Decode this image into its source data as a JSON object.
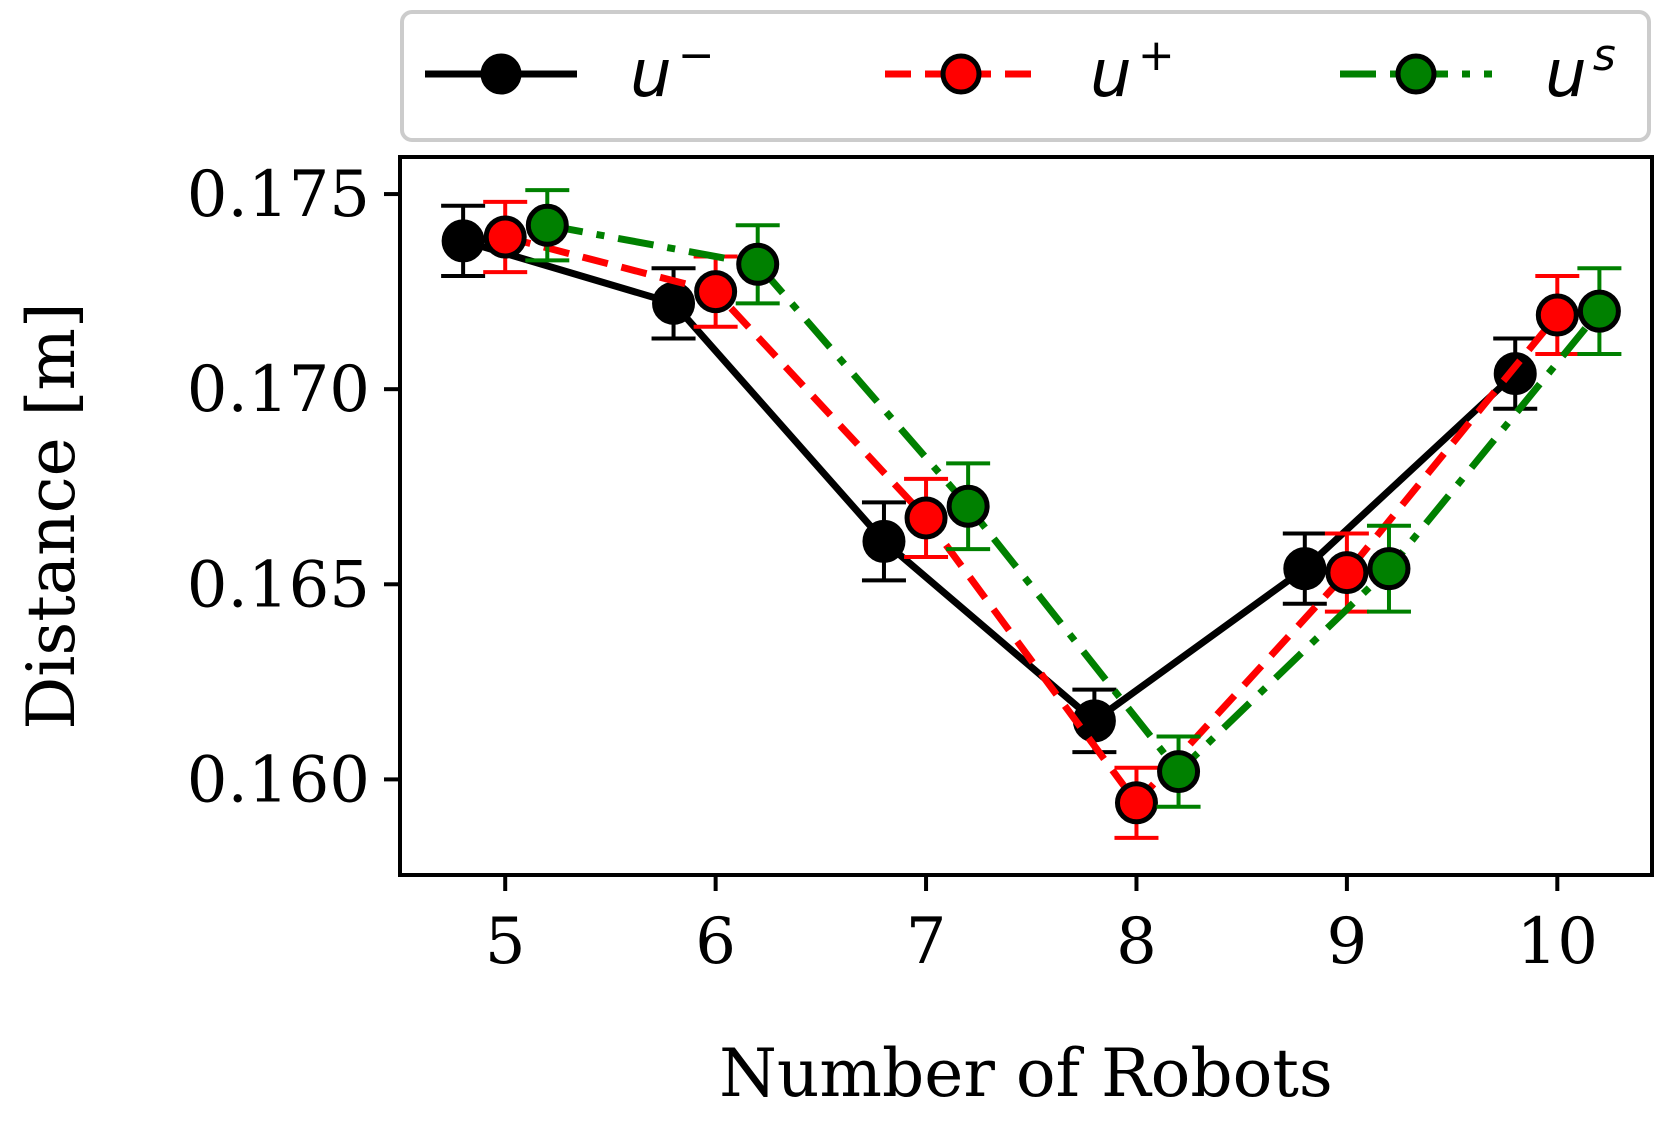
{
  "chart_data": {
    "type": "line",
    "xlabel": "Number of Robots",
    "ylabel": "Distance [m]",
    "x_ticks": [
      "5",
      "6",
      "7",
      "8",
      "9",
      "10"
    ],
    "y_ticks": [
      "0.160",
      "0.165",
      "0.170",
      "0.175"
    ],
    "y_tick_values": [
      0.16,
      0.165,
      0.17,
      0.175
    ],
    "xlim": [
      4.5,
      10.45
    ],
    "ylim": [
      0.15755,
      0.17595
    ],
    "grid": false,
    "legend_position": "top",
    "series": [
      {
        "name": "u",
        "name_sup": "−",
        "color": "#000000",
        "marker_fill": "#000000",
        "line_style": "solid",
        "x": [
          4.8,
          5.8,
          6.8,
          7.8,
          8.8,
          9.8
        ],
        "y": [
          0.1738,
          0.1722,
          0.1661,
          0.1615,
          0.1654,
          0.1704
        ],
        "err": [
          0.0009,
          0.0009,
          0.001,
          0.0008,
          0.0009,
          0.0009
        ]
      },
      {
        "name": "u",
        "name_sup": "+",
        "color": "#ff0000",
        "marker_fill": "#ff0000",
        "line_style": "dashed",
        "x": [
          5.0,
          6.0,
          7.0,
          8.0,
          9.0,
          10.0
        ],
        "y": [
          0.1739,
          0.1725,
          0.1667,
          0.1594,
          0.1653,
          0.1719
        ],
        "err": [
          0.0009,
          0.0009,
          0.001,
          0.0009,
          0.001,
          0.001
        ]
      },
      {
        "name": "u",
        "name_sup": "s",
        "color": "#008000",
        "marker_fill": "#008000",
        "line_style": "dashdot",
        "x": [
          5.2,
          6.2,
          7.2,
          8.2,
          9.2,
          10.2
        ],
        "y": [
          0.1742,
          0.1732,
          0.167,
          0.1602,
          0.1654,
          0.172
        ],
        "err": [
          0.0009,
          0.001,
          0.0011,
          0.0009,
          0.0011,
          0.0011
        ]
      }
    ]
  }
}
